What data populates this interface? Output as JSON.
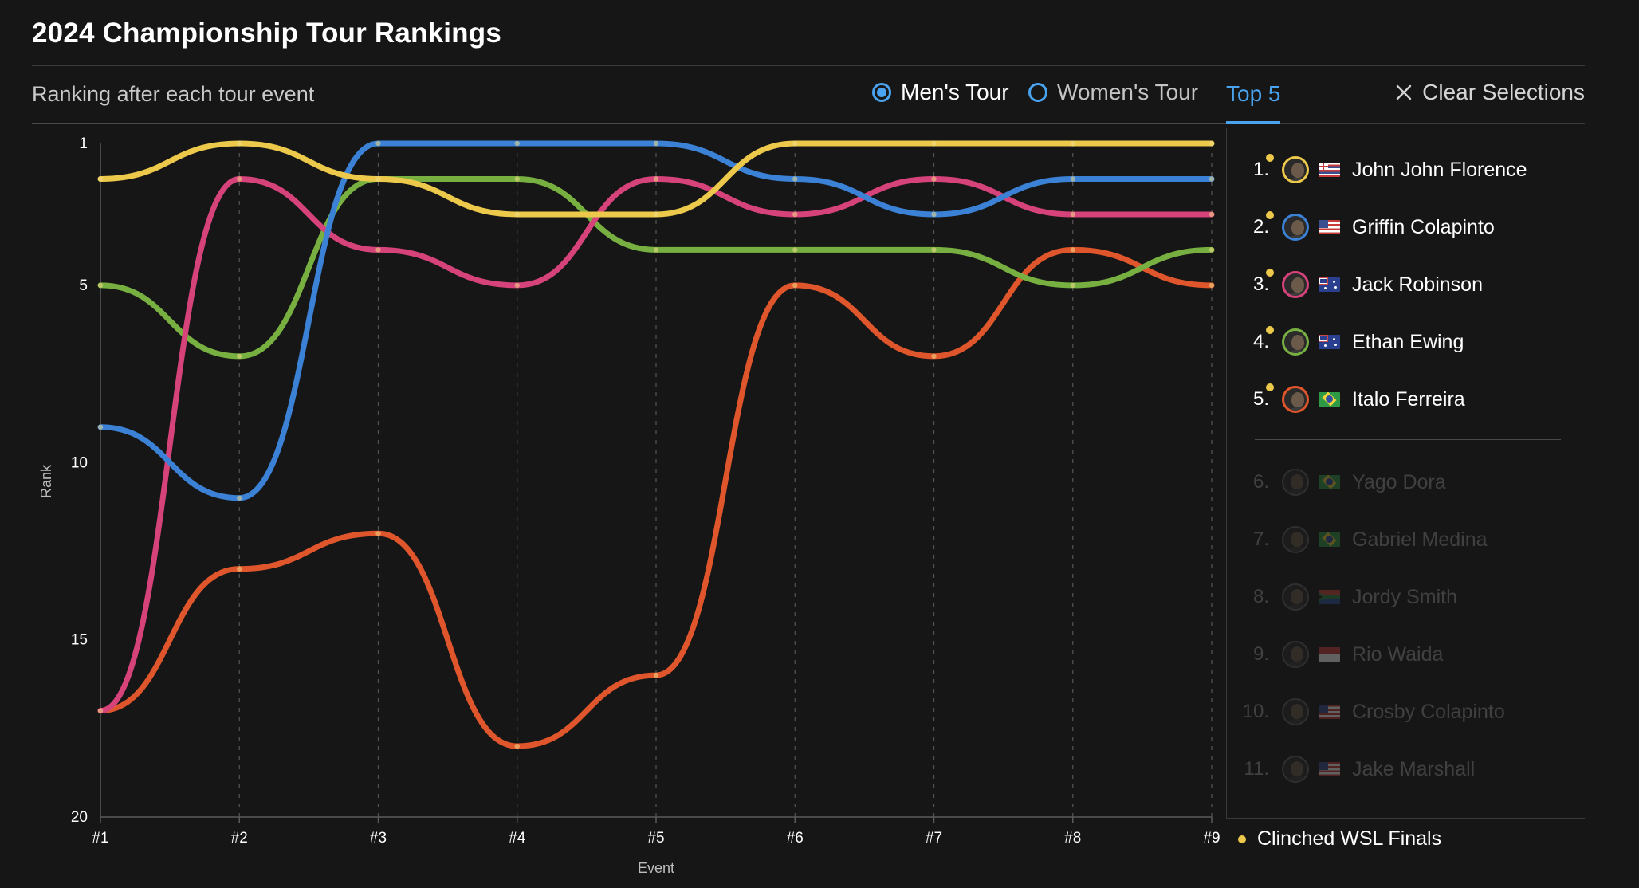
{
  "page": {
    "title": "2024 Championship Tour Rankings",
    "subtitle": "Ranking after each tour event"
  },
  "controls": {
    "tour_options": [
      {
        "label": "Men's Tour",
        "selected": true
      },
      {
        "label": "Women's Tour",
        "selected": false
      }
    ],
    "tab_label": "Top 5",
    "clear_label": "Clear Selections",
    "accent_color": "#4aa3ef"
  },
  "ranking_list": [
    {
      "rank": "1.",
      "name": "John John Florence",
      "flag": "hawaii",
      "color": "#ecc94b",
      "clinched": true,
      "highlighted": true
    },
    {
      "rank": "2.",
      "name": "Griffin Colapinto",
      "flag": "usa",
      "color": "#3b82d6",
      "clinched": true,
      "highlighted": true
    },
    {
      "rank": "3.",
      "name": "Jack Robinson",
      "flag": "australia",
      "color": "#d6437a",
      "clinched": true,
      "highlighted": true
    },
    {
      "rank": "4.",
      "name": "Ethan Ewing",
      "flag": "australia",
      "color": "#77b041",
      "clinched": true,
      "highlighted": true
    },
    {
      "rank": "5.",
      "name": "Italo Ferreira",
      "flag": "brazil",
      "color": "#e0562c",
      "clinched": true,
      "highlighted": true
    },
    {
      "rank": "6.",
      "name": "Yago Dora",
      "flag": "brazil",
      "color": "#555555",
      "clinched": false,
      "highlighted": false
    },
    {
      "rank": "7.",
      "name": "Gabriel Medina",
      "flag": "brazil",
      "color": "#555555",
      "clinched": false,
      "highlighted": false
    },
    {
      "rank": "8.",
      "name": "Jordy Smith",
      "flag": "south-africa",
      "color": "#555555",
      "clinched": false,
      "highlighted": false
    },
    {
      "rank": "9.",
      "name": "Rio Waida",
      "flag": "indonesia",
      "color": "#555555",
      "clinched": false,
      "highlighted": false
    },
    {
      "rank": "10.",
      "name": "Crosby Colapinto",
      "flag": "usa",
      "color": "#555555",
      "clinched": false,
      "highlighted": false
    },
    {
      "rank": "11.",
      "name": "Jake Marshall",
      "flag": "usa",
      "color": "#555555",
      "clinched": false,
      "highlighted": false
    }
  ],
  "legend": {
    "label": "Clinched WSL Finals",
    "color": "#ecc94b"
  },
  "chart_data": {
    "type": "line",
    "xlabel": "Event",
    "ylabel": "Rank",
    "categories": [
      "#1",
      "#2",
      "#3",
      "#4",
      "#5",
      "#6",
      "#7",
      "#8",
      "#9"
    ],
    "yticks": [
      1,
      5,
      10,
      15,
      20
    ],
    "ylim": [
      1,
      20
    ],
    "y_inverted": true,
    "grid": "vertical dashed lines at each event",
    "series": [
      {
        "name": "John John Florence",
        "color": "#ecc94b",
        "values": [
          2,
          1,
          2,
          3,
          3,
          1,
          1,
          1,
          1
        ]
      },
      {
        "name": "Griffin Colapinto",
        "color": "#3b82d6",
        "values": [
          9,
          11,
          1,
          1,
          1,
          2,
          3,
          2,
          2
        ]
      },
      {
        "name": "Jack Robinson",
        "color": "#d6437a",
        "values": [
          17,
          2,
          4,
          5,
          2,
          3,
          2,
          3,
          3
        ]
      },
      {
        "name": "Ethan Ewing",
        "color": "#77b041",
        "values": [
          5,
          7,
          2,
          2,
          4,
          4,
          4,
          5,
          4
        ]
      },
      {
        "name": "Italo Ferreira",
        "color": "#e0562c",
        "values": [
          17,
          13,
          12,
          18,
          16,
          5,
          7,
          4,
          5
        ]
      }
    ]
  }
}
